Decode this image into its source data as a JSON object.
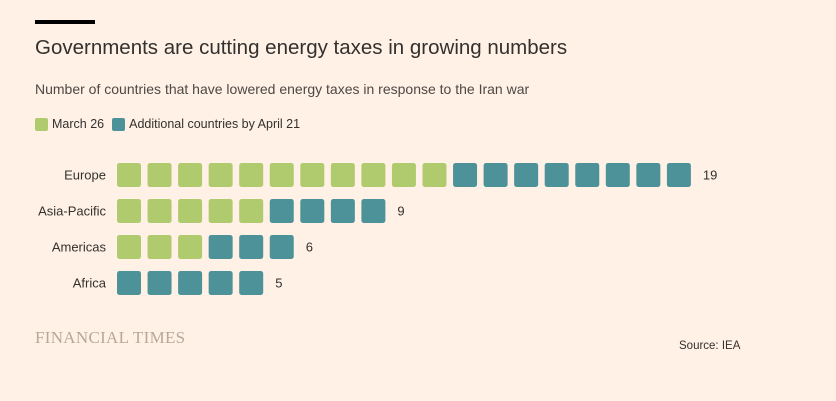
{
  "header": {
    "title": "Governments are cutting energy taxes in growing numbers",
    "subtitle": "Number of countries that have lowered energy taxes in response to the Iran war"
  },
  "legend": {
    "items": [
      {
        "label": "March 26",
        "color": "#AFCB6E"
      },
      {
        "label": "Additional countries by April 21",
        "color": "#4E9299"
      }
    ]
  },
  "chart_data": {
    "type": "bar",
    "title": "Governments are cutting energy taxes in growing numbers",
    "subtitle": "Number of countries that have lowered energy taxes in response to the Iran war",
    "xlabel": "",
    "ylabel": "",
    "categories": [
      "Europe",
      "Asia-Pacific",
      "Americas",
      "Africa"
    ],
    "series": [
      {
        "name": "March 26",
        "values": [
          11,
          5,
          3,
          0
        ],
        "color": "#AFCB6E"
      },
      {
        "name": "Additional countries by April 21",
        "values": [
          8,
          4,
          3,
          5
        ],
        "color": "#4E9299"
      }
    ],
    "totals": [
      19,
      9,
      6,
      5
    ],
    "stacked": true,
    "unit_marks": true,
    "legend_position": "top-left"
  },
  "footer": {
    "logo": "FINANCIAL TIMES",
    "source": "Source: IEA"
  }
}
